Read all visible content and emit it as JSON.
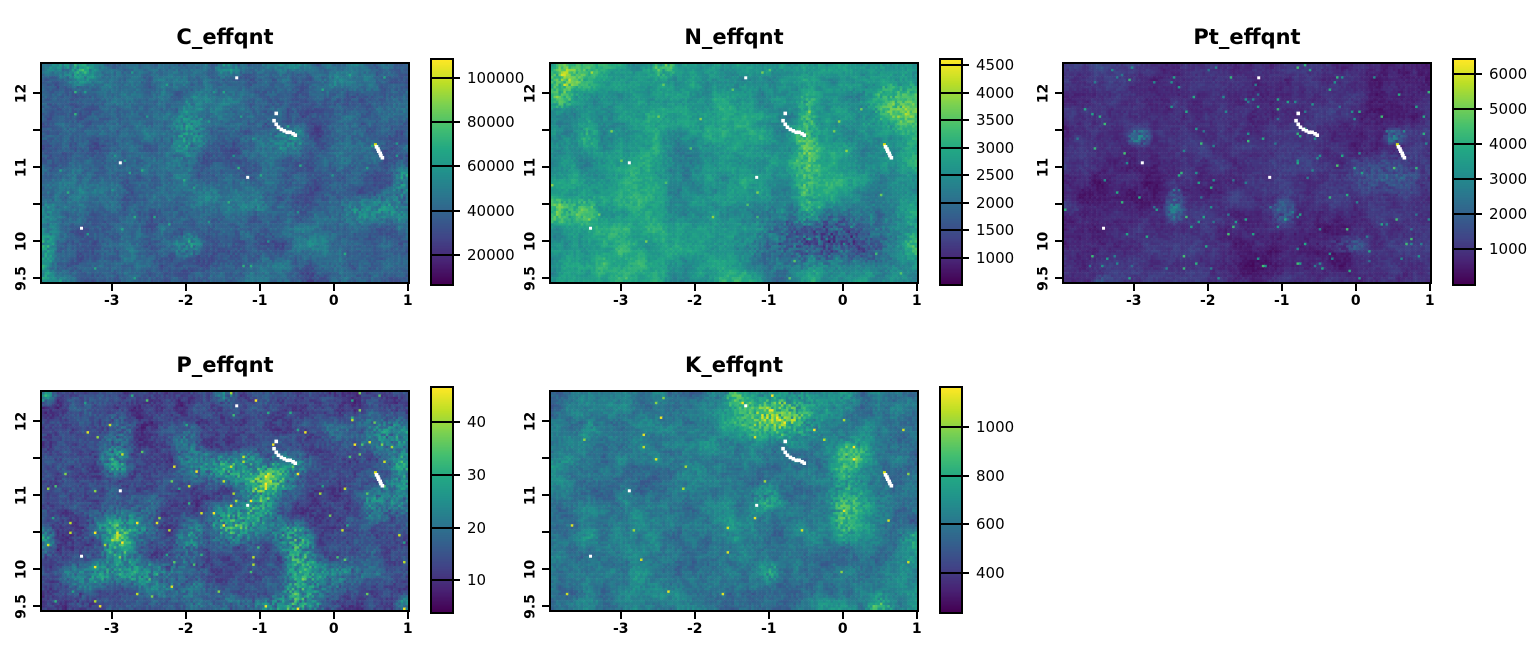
{
  "figure": {
    "background": "#ffffff",
    "grid": "off",
    "layout": {
      "rows": 2,
      "cols": 3,
      "empty_cells": [
        "r2c3"
      ]
    },
    "legend_position": "right"
  },
  "colors": {
    "axis": "#000000",
    "text": "#000000",
    "na_white": "#ffffff",
    "na_yellow": "#d8e219",
    "viridis_stops": [
      [
        0.0,
        "#440154"
      ],
      [
        0.1,
        "#482475"
      ],
      [
        0.2,
        "#414487"
      ],
      [
        0.3,
        "#355f8d"
      ],
      [
        0.4,
        "#2a788e"
      ],
      [
        0.5,
        "#21918c"
      ],
      [
        0.6,
        "#22a884"
      ],
      [
        0.7,
        "#44bf70"
      ],
      [
        0.8,
        "#7ad151"
      ],
      [
        0.9,
        "#bddf26"
      ],
      [
        1.0,
        "#fde725"
      ]
    ]
  },
  "na_cells": {
    "dots": [
      [
        -1.31,
        12.23
      ],
      [
        -2.9,
        11.06
      ],
      [
        -3.43,
        10.16
      ],
      [
        -1.16,
        10.86
      ]
    ],
    "arc": [
      [
        -0.77,
        11.74
      ],
      [
        -0.8,
        11.64
      ],
      [
        -0.77,
        11.59
      ],
      [
        -0.74,
        11.55
      ],
      [
        -0.7,
        11.52
      ],
      [
        -0.66,
        11.5
      ],
      [
        -0.62,
        11.48
      ],
      [
        -0.58,
        11.48
      ],
      [
        -0.54,
        11.46
      ],
      [
        -0.51,
        11.44
      ]
    ],
    "streak": [
      [
        0.6,
        11.28
      ],
      [
        0.62,
        11.25
      ],
      [
        0.63,
        11.22
      ],
      [
        0.65,
        11.19
      ],
      [
        0.66,
        11.16
      ],
      [
        0.68,
        11.13
      ]
    ],
    "yellow_cells": [
      [
        0.585,
        11.31
      ]
    ]
  },
  "chart_data": [
    {
      "type": "heatmap",
      "title": "C_effqnt",
      "colormap": "viridis",
      "x_range": [
        -3.97,
        1.03
      ],
      "y_range": [
        9.42,
        12.42
      ],
      "x_ticks": [
        -3,
        -2,
        -1,
        0,
        1
      ],
      "x_tick_labels": [
        "-3",
        "-2",
        "-1",
        "0",
        "1"
      ],
      "y_ticks": [
        9.5,
        10,
        10.5,
        11,
        11.5,
        12
      ],
      "y_tick_labels": [
        "9.5",
        "10",
        "",
        "11",
        "",
        "12"
      ],
      "legend_ticks": [
        20000,
        40000,
        60000,
        80000,
        100000
      ],
      "legend_tick_labels": [
        "20000",
        "40000",
        "60000",
        "80000",
        "100000"
      ],
      "value_range": [
        7000,
        108000
      ],
      "appearance": {
        "seed": 101,
        "base": 0.33,
        "a1": 0.07,
        "a2": 0.06,
        "a3": 0.05,
        "speckle": 0.1,
        "cluster_threshold": 0.66,
        "cluster_gain": 0.26,
        "bright_prob": 0.004,
        "bright_base": 0.5,
        "bright_amp": 0.15,
        "hotspots": []
      }
    },
    {
      "type": "heatmap",
      "title": "N_effqnt",
      "colormap": "viridis",
      "x_range": [
        -3.97,
        1.03
      ],
      "y_range": [
        9.42,
        12.42
      ],
      "x_ticks": [
        -3,
        -2,
        -1,
        0,
        1
      ],
      "x_tick_labels": [
        "-3",
        "-2",
        "-1",
        "0",
        "1"
      ],
      "y_ticks": [
        9.5,
        10,
        10.5,
        11,
        11.5,
        12
      ],
      "y_tick_labels": [
        "9.5",
        "10",
        "",
        "11",
        "",
        "12"
      ],
      "legend_ticks": [
        1000,
        1500,
        2000,
        2500,
        3000,
        3500,
        4000,
        4500
      ],
      "legend_tick_labels": [
        "1000",
        "1500",
        "2000",
        "2500",
        "3000",
        "3500",
        "4000",
        "4500"
      ],
      "value_range": [
        520,
        4600
      ],
      "appearance": {
        "seed": 202,
        "base": 0.52,
        "a1": 0.09,
        "a2": 0.06,
        "a3": 0.05,
        "speckle": 0.09,
        "cluster_threshold": 0.66,
        "cluster_gain": 0.28,
        "bright_prob": 0.003,
        "bright_base": 0.7,
        "bright_amp": 0.15,
        "hotspots": [
          {
            "x": -0.3,
            "y": 10.0,
            "rx": 0.9,
            "ry": 0.42,
            "gain": -0.3
          },
          {
            "x": 0.75,
            "y": 11.9,
            "rx": 0.5,
            "ry": 0.35,
            "gain": 0.22
          },
          {
            "x": -3.8,
            "y": 12.25,
            "rx": 0.25,
            "ry": 0.3,
            "gain": 0.32
          }
        ]
      }
    },
    {
      "type": "heatmap",
      "title": "Pt_effqnt",
      "colormap": "viridis",
      "x_range": [
        -3.97,
        1.03
      ],
      "y_range": [
        9.42,
        12.42
      ],
      "x_ticks": [
        -3,
        -2,
        -1,
        0,
        1
      ],
      "x_tick_labels": [
        "-3",
        "-2",
        "-1",
        "0",
        "1"
      ],
      "y_ticks": [
        9.5,
        10,
        10.5,
        11,
        11.5,
        12
      ],
      "y_tick_labels": [
        "9.5",
        "10",
        "",
        "11",
        "",
        "12"
      ],
      "legend_ticks": [
        1000,
        2000,
        3000,
        4000,
        5000,
        6000
      ],
      "legend_tick_labels": [
        "1000",
        "2000",
        "3000",
        "4000",
        "5000",
        "6000"
      ],
      "value_range": [
        0,
        6400
      ],
      "appearance": {
        "seed": 303,
        "base": 0.13,
        "a1": 0.045,
        "a2": 0.035,
        "a3": 0.03,
        "speckle": 0.055,
        "cluster_threshold": 0.78,
        "cluster_gain": 0.3,
        "bright_prob": 0.012,
        "bright_base": 0.35,
        "bright_amp": 0.35,
        "hotspots": [
          {
            "x": 0.5,
            "y": 10.9,
            "rx": 0.55,
            "ry": 0.3,
            "gain": 0.15
          }
        ]
      }
    },
    {
      "type": "heatmap",
      "title": "P_effqnt",
      "colormap": "viridis",
      "x_range": [
        -3.97,
        1.03
      ],
      "y_range": [
        9.42,
        12.42
      ],
      "x_ticks": [
        -3,
        -2,
        -1,
        0,
        1
      ],
      "x_tick_labels": [
        "-3",
        "-2",
        "-1",
        "0",
        "1"
      ],
      "y_ticks": [
        9.5,
        10,
        10.5,
        11,
        11.5,
        12
      ],
      "y_tick_labels": [
        "9.5",
        "10",
        "",
        "11",
        "",
        "12"
      ],
      "legend_ticks": [
        10,
        20,
        30,
        40
      ],
      "legend_tick_labels": [
        "10",
        "20",
        "30",
        "40"
      ],
      "value_range": [
        4,
        46.5
      ],
      "appearance": {
        "seed": 404,
        "base": 0.21,
        "a1": 0.06,
        "a2": 0.05,
        "a3": 0.05,
        "speckle": 0.12,
        "cluster_threshold": 0.6,
        "cluster_gain": 0.4,
        "bright_prob": 0.01,
        "bright_base": 0.55,
        "bright_amp": 0.45,
        "hotspots": [
          {
            "x": -1.35,
            "y": 10.6,
            "rx": 0.32,
            "ry": 0.26,
            "gain": 0.5
          },
          {
            "x": -2.9,
            "y": 10.55,
            "rx": 0.45,
            "ry": 0.3,
            "gain": 0.35
          },
          {
            "x": -0.8,
            "y": 11.2,
            "rx": 0.35,
            "ry": 0.22,
            "gain": 0.42
          },
          {
            "x": 0.85,
            "y": 11.85,
            "rx": 0.4,
            "ry": 0.3,
            "gain": 0.3
          }
        ]
      }
    },
    {
      "type": "heatmap",
      "title": "K_effqnt",
      "colormap": "viridis",
      "x_range": [
        -3.97,
        1.03
      ],
      "y_range": [
        9.42,
        12.42
      ],
      "x_ticks": [
        -3,
        -2,
        -1,
        0,
        1
      ],
      "x_tick_labels": [
        "-3",
        "-2",
        "-1",
        "0",
        "1"
      ],
      "y_ticks": [
        9.5,
        10,
        10.5,
        11,
        11.5,
        12
      ],
      "y_tick_labels": [
        "9.5",
        "10",
        "",
        "11",
        "",
        "12"
      ],
      "legend_ticks": [
        400,
        600,
        800,
        1000
      ],
      "legend_tick_labels": [
        "400",
        "600",
        "800",
        "1000"
      ],
      "value_range": [
        240,
        1160
      ],
      "appearance": {
        "seed": 505,
        "base": 0.4,
        "a1": 0.08,
        "a2": 0.06,
        "a3": 0.05,
        "speckle": 0.1,
        "cluster_threshold": 0.66,
        "cluster_gain": 0.28,
        "bright_prob": 0.004,
        "bright_base": 0.8,
        "bright_amp": 0.2,
        "hotspots": [
          {
            "x": -0.85,
            "y": 12.1,
            "rx": 0.5,
            "ry": 0.3,
            "gain": 0.5
          },
          {
            "x": 0.15,
            "y": 11.6,
            "rx": 0.3,
            "ry": 0.22,
            "gain": 0.22
          }
        ]
      }
    }
  ]
}
